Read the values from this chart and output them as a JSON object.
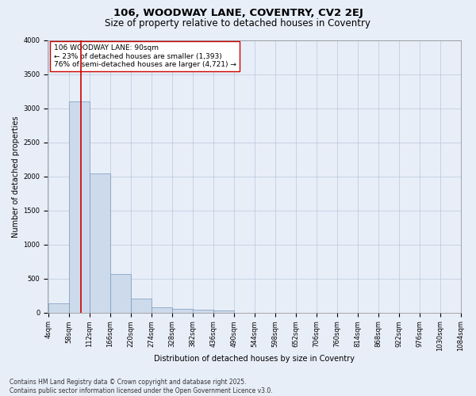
{
  "title": "106, WOODWAY LANE, COVENTRY, CV2 2EJ",
  "subtitle": "Size of property relative to detached houses in Coventry",
  "xlabel": "Distribution of detached houses by size in Coventry",
  "ylabel": "Number of detached properties",
  "footer_line1": "Contains HM Land Registry data © Crown copyright and database right 2025.",
  "footer_line2": "Contains public sector information licensed under the Open Government Licence v3.0.",
  "annotation_line1": "106 WOODWAY LANE: 90sqm",
  "annotation_line2": "← 23% of detached houses are smaller (1,393)",
  "annotation_line3": "76% of semi-detached houses are larger (4,721) →",
  "property_size": 90,
  "bin_edges": [
    4,
    58,
    112,
    166,
    220,
    274,
    328,
    382,
    436,
    490,
    544,
    598,
    652,
    706,
    760,
    814,
    868,
    922,
    976,
    1030,
    1084
  ],
  "bin_labels": [
    "4sqm",
    "58sqm",
    "112sqm",
    "166sqm",
    "220sqm",
    "274sqm",
    "328sqm",
    "382sqm",
    "436sqm",
    "490sqm",
    "544sqm",
    "598sqm",
    "652sqm",
    "706sqm",
    "760sqm",
    "814sqm",
    "868sqm",
    "922sqm",
    "976sqm",
    "1030sqm",
    "1084sqm"
  ],
  "bar_heights": [
    130,
    3100,
    2050,
    570,
    200,
    75,
    55,
    40,
    30,
    0,
    0,
    0,
    0,
    0,
    0,
    0,
    0,
    0,
    0,
    0
  ],
  "bar_color": "#cddaeb",
  "bar_edge_color": "#7799bb",
  "red_line_color": "#cc0000",
  "grid_color": "#b8c8dc",
  "background_color": "#e8eef8",
  "ylim": [
    0,
    4000
  ],
  "yticks": [
    0,
    500,
    1000,
    1500,
    2000,
    2500,
    3000,
    3500,
    4000
  ],
  "annotation_box_edge_color": "#cc0000",
  "annotation_box_face_color": "#ffffff",
  "title_fontsize": 9.5,
  "subtitle_fontsize": 8.5,
  "axis_label_fontsize": 7,
  "tick_fontsize": 6,
  "annotation_fontsize": 6.5,
  "footer_fontsize": 5.5
}
